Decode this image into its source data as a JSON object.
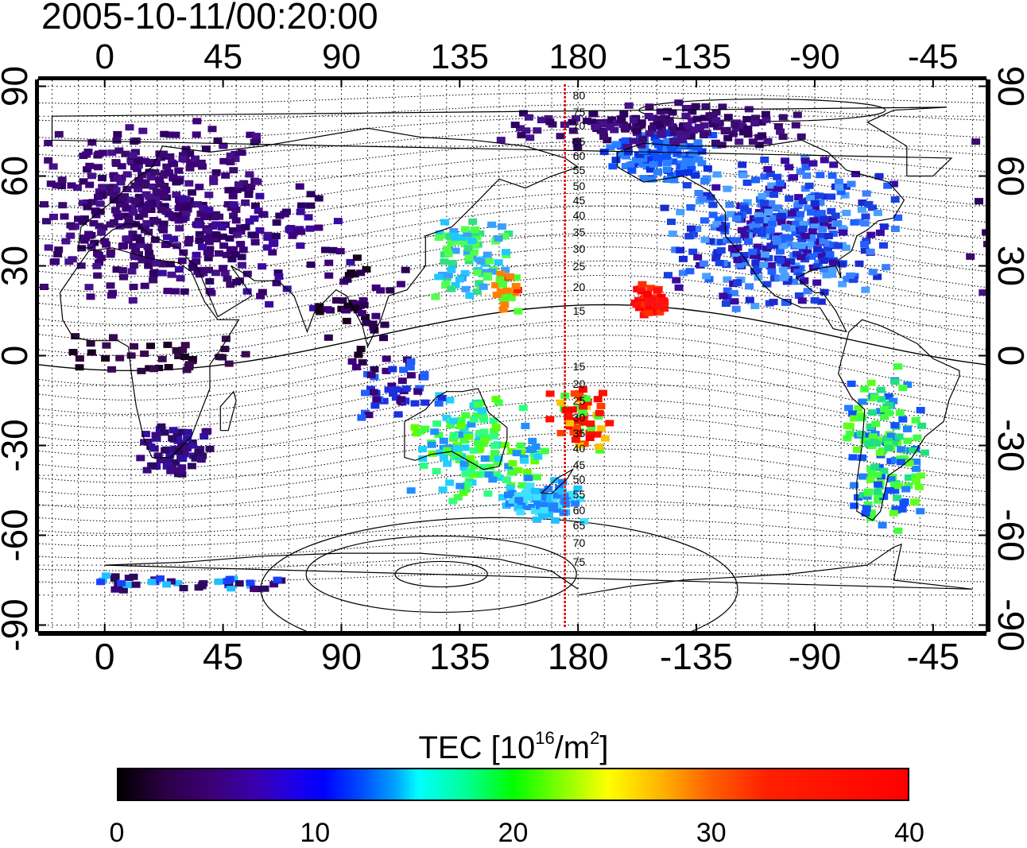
{
  "timestamp": "2005-10-11/00:20:00",
  "map": {
    "lon_tick_labels": [
      "0",
      "45",
      "90",
      "135",
      "180",
      "-135",
      "-90",
      "-45"
    ],
    "lon_tick_values": [
      0,
      45,
      90,
      135,
      180,
      225,
      270,
      315
    ],
    "lat_tick_labels": [
      "90",
      "60",
      "30",
      "0",
      "-30",
      "-60",
      "-90"
    ],
    "lat_tick_values": [
      90,
      60,
      30,
      0,
      -30,
      -60,
      -90
    ],
    "lon_range": [
      -25,
      335
    ],
    "lat_range": [
      -92,
      92
    ],
    "gridlines": "dotted, every 10 degrees",
    "marker_line_longitude": 175,
    "contour_labels_north": [
      "80",
      "75",
      "70",
      "65",
      "60",
      "55",
      "50",
      "45",
      "40",
      "35",
      "30",
      "25",
      "20",
      "15"
    ],
    "contour_labels_south": [
      "15",
      "20",
      "25",
      "30",
      "35",
      "40",
      "45",
      "50",
      "55",
      "60",
      "65",
      "70",
      "75"
    ],
    "colors": {
      "marker_line": "#e00000",
      "coast": "#000000"
    }
  },
  "colorbar": {
    "title": "TEC  [10",
    "title_exp": "16",
    "title_unit": "/m",
    "title_unit_exp": "2",
    "title_close": "]",
    "tick_labels": [
      "0",
      "10",
      "20",
      "30",
      "40"
    ],
    "tick_values": [
      0,
      10,
      20,
      30,
      40
    ],
    "range": [
      0,
      40
    ],
    "colormap": [
      "#000000",
      "#3c0078",
      "#0000ff",
      "#00ffff",
      "#00ff00",
      "#ffff00",
      "#ff0000"
    ]
  },
  "tec_regions": [
    {
      "name": "europe",
      "color": "#3a0a78"
    },
    {
      "name": "north-america",
      "color": "#1a3ad8"
    },
    {
      "name": "japan-asia",
      "color": "#3aa0ff"
    },
    {
      "name": "pacific-red",
      "color": "#ff1000"
    },
    {
      "name": "australia",
      "color": "#2ad0ff"
    },
    {
      "name": "south-america",
      "color": "#00e040"
    }
  ]
}
